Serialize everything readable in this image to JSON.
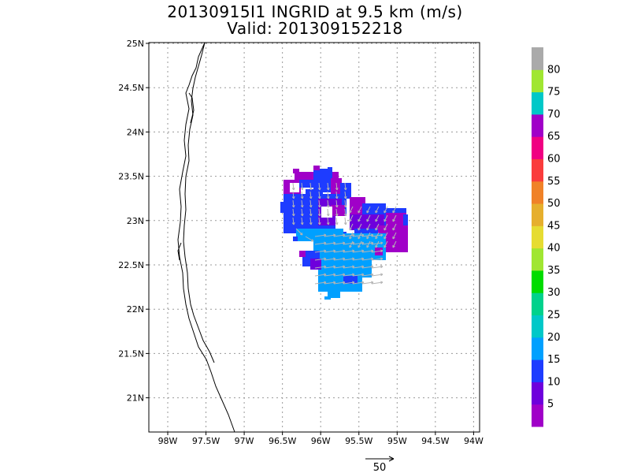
{
  "title_line1": "20130915I1 INGRID at 9.5 km (m/s)",
  "title_line2": "Valid: 201309152218",
  "map": {
    "lon_range": [
      -98.25,
      -93.95
    ],
    "lat_range": [
      20.6,
      25.0
    ],
    "lat_ticks": [
      "25N",
      "24.5N",
      "24N",
      "23.5N",
      "23N",
      "22.5N",
      "22N",
      "21.5N",
      "21N"
    ],
    "lon_ticks": [
      "98W",
      "97.5W",
      "97W",
      "96.5W",
      "96W",
      "95.5W",
      "95W",
      "94.5W",
      "94W"
    ],
    "grid": "dotted"
  },
  "colorbar": {
    "labels": [
      "5",
      "10",
      "15",
      "20",
      "25",
      "30",
      "35",
      "40",
      "45",
      "50",
      "55",
      "60",
      "65",
      "70",
      "75",
      "80"
    ],
    "colors": [
      "#a000c8",
      "#6e00dc",
      "#1e3cff",
      "#00a0ff",
      "#00c8c8",
      "#00d28c",
      "#00dc00",
      "#a0e632",
      "#e6dc32",
      "#e6af2d",
      "#f08228",
      "#fa3c3c",
      "#f00082",
      "#a000c8",
      "#00c8c8",
      "#a0e632",
      "#aaaaaa"
    ]
  },
  "reference_vector": {
    "label": "50"
  }
}
